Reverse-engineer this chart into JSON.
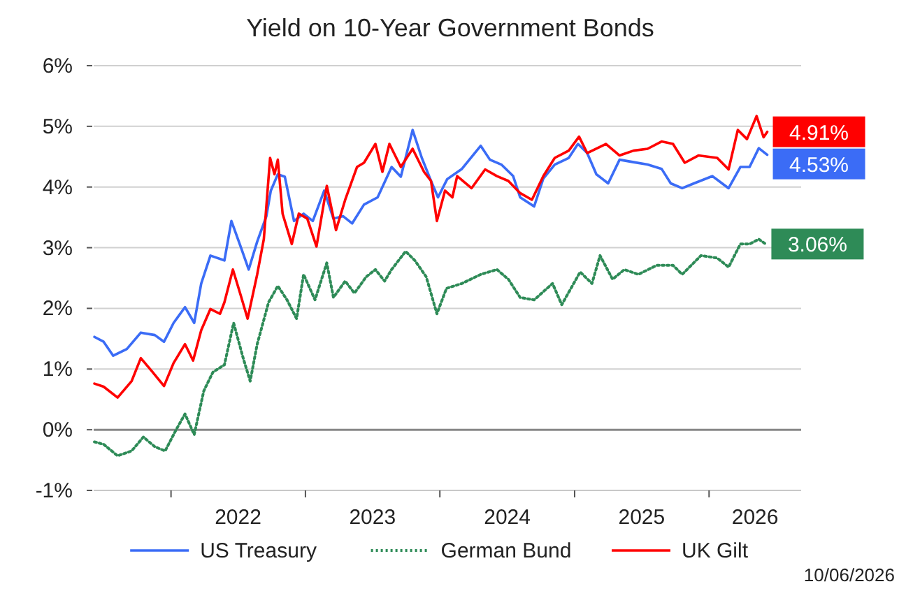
{
  "chart_data": {
    "type": "line",
    "title": "Yield on 10-Year Government Bonds",
    "xlim": [
      "2021-06-05",
      "2026-09-08"
    ],
    "xticks": [
      {
        "value": "2022-01-01",
        "label": null
      },
      {
        "value": "2023-01-01",
        "label": null
      },
      {
        "value": "2024-01-01",
        "label": null
      },
      {
        "value": "2025-01-01",
        "label": null
      },
      {
        "value": "2026-01-01",
        "label": null
      },
      {
        "value": "2022-07-02",
        "label": "2022"
      },
      {
        "value": "2023-07-02",
        "label": "2023"
      },
      {
        "value": "2024-07-02",
        "label": "2024"
      },
      {
        "value": "2025-07-02",
        "label": "2025"
      },
      {
        "value": "2026-05-06",
        "label": "2026"
      }
    ],
    "ylim": [
      -1,
      6
    ],
    "yticks": [
      {
        "value": -1,
        "label": "-1%"
      },
      {
        "value": 0,
        "label": "0%"
      },
      {
        "value": 1,
        "label": "1%"
      },
      {
        "value": 2,
        "label": "2%"
      },
      {
        "value": 3,
        "label": "3%"
      },
      {
        "value": 4,
        "label": "4%"
      },
      {
        "value": 5,
        "label": "5%"
      },
      {
        "value": 6,
        "label": "6%"
      }
    ],
    "grid": "y",
    "legend": "bottom",
    "marker": "none",
    "series": [
      {
        "name": "US Treasury",
        "color": "#3b6cf6",
        "line_style": "solid",
        "x": [
          "2021-06-07",
          "2021-07-02",
          "2021-07-28",
          "2021-09-03",
          "2021-10-11",
          "2021-11-18",
          "2021-12-13",
          "2022-01-08",
          "2022-02-08",
          "2022-03-05",
          "2022-03-24",
          "2022-04-18",
          "2022-05-26",
          "2022-06-14",
          "2022-07-09",
          "2022-07-31",
          "2022-08-23",
          "2022-09-17",
          "2022-09-29",
          "2022-10-18",
          "2022-11-06",
          "2022-12-01",
          "2022-12-27",
          "2023-01-21",
          "2023-02-21",
          "2023-03-18",
          "2023-04-13",
          "2023-05-08",
          "2023-06-09",
          "2023-07-16",
          "2023-08-23",
          "2023-09-17",
          "2023-10-19",
          "2023-11-13",
          "2023-12-08",
          "2023-12-27",
          "2024-01-21",
          "2024-03-01",
          "2024-04-21",
          "2024-05-16",
          "2024-06-16",
          "2024-07-18",
          "2024-08-06",
          "2024-09-13",
          "2024-10-08",
          "2024-11-08",
          "2024-12-16",
          "2025-01-10",
          "2025-02-04",
          "2025-03-01",
          "2025-04-02",
          "2025-05-03",
          "2025-06-10",
          "2025-07-18",
          "2025-08-25",
          "2025-09-19",
          "2025-10-20",
          "2025-11-21",
          "2026-01-10",
          "2026-02-23",
          "2026-03-27",
          "2026-04-21",
          "2026-05-16",
          "2026-06-08"
        ],
        "values": [
          1.53,
          1.45,
          1.22,
          1.33,
          1.6,
          1.56,
          1.45,
          1.76,
          2.02,
          1.76,
          2.41,
          2.87,
          2.79,
          3.44,
          3.02,
          2.64,
          3.1,
          3.52,
          3.94,
          4.21,
          4.17,
          3.44,
          3.56,
          3.44,
          3.94,
          3.48,
          3.52,
          3.4,
          3.71,
          3.83,
          4.33,
          4.17,
          4.94,
          4.48,
          4.1,
          3.83,
          4.13,
          4.3,
          4.68,
          4.45,
          4.37,
          4.18,
          3.83,
          3.68,
          4.14,
          4.37,
          4.48,
          4.71,
          4.56,
          4.21,
          4.06,
          4.45,
          4.41,
          4.37,
          4.3,
          4.06,
          3.98,
          4.06,
          4.18,
          3.98,
          4.33,
          4.33,
          4.64,
          4.53
        ],
        "value_labels": [
          null,
          null,
          null,
          null,
          null,
          null,
          null,
          null,
          null,
          null,
          null,
          null,
          null,
          null,
          null,
          null,
          null,
          null,
          null,
          null,
          null,
          null,
          null,
          null,
          null,
          null,
          null,
          null,
          null,
          null,
          null,
          null,
          null,
          null,
          null,
          null,
          null,
          null,
          null,
          null,
          null,
          null,
          null,
          null,
          null,
          null,
          null,
          null,
          null,
          null,
          null,
          null,
          null,
          null,
          null,
          null,
          null,
          null,
          null,
          null,
          null,
          null,
          null,
          "4.53%"
        ]
      },
      {
        "name": "German Bund",
        "color": "#2e8b57",
        "line_style": "dotted",
        "x": [
          "2021-06-07",
          "2021-07-02",
          "2021-08-09",
          "2021-09-16",
          "2021-10-18",
          "2021-11-18",
          "2021-12-16",
          "2022-01-14",
          "2022-02-08",
          "2022-03-05",
          "2022-03-31",
          "2022-04-25",
          "2022-05-26",
          "2022-06-20",
          "2022-07-16",
          "2022-08-04",
          "2022-08-23",
          "2022-09-23",
          "2022-10-18",
          "2022-11-12",
          "2022-12-08",
          "2022-12-27",
          "2023-01-27",
          "2023-02-28",
          "2023-03-18",
          "2023-04-19",
          "2023-05-14",
          "2023-06-15",
          "2023-07-10",
          "2023-08-04",
          "2023-08-23",
          "2023-09-30",
          "2023-10-25",
          "2023-11-25",
          "2023-12-24",
          "2024-01-19",
          "2024-03-01",
          "2024-04-21",
          "2024-06-04",
          "2024-07-05",
          "2024-08-06",
          "2024-09-13",
          "2024-11-02",
          "2024-11-27",
          "2025-01-16",
          "2025-02-17",
          "2025-03-11",
          "2025-04-14",
          "2025-05-16",
          "2025-06-23",
          "2025-08-12",
          "2025-09-25",
          "2025-10-20",
          "2025-12-10",
          "2026-01-23",
          "2026-02-23",
          "2026-03-27",
          "2026-04-21",
          "2026-05-16",
          "2026-06-04"
        ],
        "values": [
          -0.2,
          -0.24,
          -0.43,
          -0.35,
          -0.12,
          -0.28,
          -0.35,
          -0.01,
          0.26,
          -0.08,
          0.64,
          0.95,
          1.07,
          1.76,
          1.18,
          0.8,
          1.41,
          2.1,
          2.37,
          2.14,
          1.83,
          2.56,
          2.14,
          2.75,
          2.18,
          2.45,
          2.25,
          2.52,
          2.64,
          2.45,
          2.64,
          2.94,
          2.79,
          2.52,
          1.91,
          2.33,
          2.41,
          2.56,
          2.64,
          2.48,
          2.18,
          2.14,
          2.41,
          2.06,
          2.6,
          2.41,
          2.87,
          2.48,
          2.64,
          2.56,
          2.71,
          2.71,
          2.56,
          2.87,
          2.83,
          2.68,
          3.06,
          3.06,
          3.14,
          3.06
        ],
        "value_labels": [
          null,
          null,
          null,
          null,
          null,
          null,
          null,
          null,
          null,
          null,
          null,
          null,
          null,
          null,
          null,
          null,
          null,
          null,
          null,
          null,
          null,
          null,
          null,
          null,
          null,
          null,
          null,
          null,
          null,
          null,
          null,
          null,
          null,
          null,
          null,
          null,
          null,
          null,
          null,
          null,
          null,
          null,
          null,
          null,
          null,
          null,
          null,
          null,
          null,
          null,
          null,
          null,
          null,
          null,
          null,
          null,
          null,
          null,
          null,
          "3.06%"
        ]
      },
      {
        "name": "UK Gilt",
        "color": "#ff0000",
        "line_style": "solid",
        "x": [
          "2021-06-07",
          "2021-07-02",
          "2021-08-09",
          "2021-09-16",
          "2021-10-11",
          "2021-11-12",
          "2021-12-13",
          "2022-01-08",
          "2022-02-08",
          "2022-03-02",
          "2022-03-24",
          "2022-04-18",
          "2022-05-14",
          "2022-05-26",
          "2022-06-18",
          "2022-07-09",
          "2022-07-28",
          "2022-08-23",
          "2022-09-10",
          "2022-09-27",
          "2022-10-09",
          "2022-10-18",
          "2022-10-31",
          "2022-11-25",
          "2022-12-14",
          "2023-01-06",
          "2023-01-31",
          "2023-02-28",
          "2023-03-25",
          "2023-04-19",
          "2023-05-21",
          "2023-06-09",
          "2023-07-10",
          "2023-07-29",
          "2023-08-17",
          "2023-09-17",
          "2023-10-19",
          "2023-11-19",
          "2023-12-08",
          "2023-12-24",
          "2024-01-15",
          "2024-02-04",
          "2024-02-17",
          "2024-03-27",
          "2024-05-03",
          "2024-06-04",
          "2024-07-05",
          "2024-08-06",
          "2024-09-07",
          "2024-10-08",
          "2024-11-08",
          "2024-12-16",
          "2025-01-13",
          "2025-02-04",
          "2025-03-27",
          "2025-05-03",
          "2025-06-10",
          "2025-07-18",
          "2025-08-25",
          "2025-09-25",
          "2025-10-27",
          "2025-12-03",
          "2026-01-23",
          "2026-02-23",
          "2026-03-20",
          "2026-04-14",
          "2026-05-10",
          "2026-05-29",
          "2026-06-08"
        ],
        "values": [
          0.76,
          0.71,
          0.53,
          0.8,
          1.18,
          0.95,
          0.72,
          1.1,
          1.41,
          1.14,
          1.64,
          1.99,
          1.91,
          2.1,
          2.64,
          2.22,
          1.83,
          2.56,
          3.14,
          4.48,
          4.21,
          4.45,
          3.56,
          3.06,
          3.56,
          3.48,
          3.02,
          4.02,
          3.29,
          3.79,
          4.33,
          4.4,
          4.71,
          4.25,
          4.71,
          4.33,
          4.63,
          4.25,
          4.1,
          3.44,
          3.94,
          3.83,
          4.18,
          3.98,
          4.29,
          4.18,
          4.1,
          3.9,
          3.79,
          4.18,
          4.48,
          4.6,
          4.83,
          4.56,
          4.71,
          4.52,
          4.6,
          4.63,
          4.75,
          4.71,
          4.4,
          4.52,
          4.48,
          4.29,
          4.94,
          4.79,
          5.17,
          4.82,
          4.91
        ],
        "value_labels": [
          null,
          null,
          null,
          null,
          null,
          null,
          null,
          null,
          null,
          null,
          null,
          null,
          null,
          null,
          null,
          null,
          null,
          null,
          null,
          null,
          null,
          null,
          null,
          null,
          null,
          null,
          null,
          null,
          null,
          null,
          null,
          null,
          null,
          null,
          null,
          null,
          null,
          null,
          null,
          null,
          null,
          null,
          null,
          null,
          null,
          null,
          null,
          null,
          null,
          null,
          null,
          null,
          null,
          null,
          null,
          null,
          null,
          null,
          null,
          null,
          null,
          null,
          null,
          null,
          null,
          null,
          null,
          null,
          "4.91%"
        ]
      }
    ],
    "annotations": [
      "10/06/2026"
    ]
  }
}
